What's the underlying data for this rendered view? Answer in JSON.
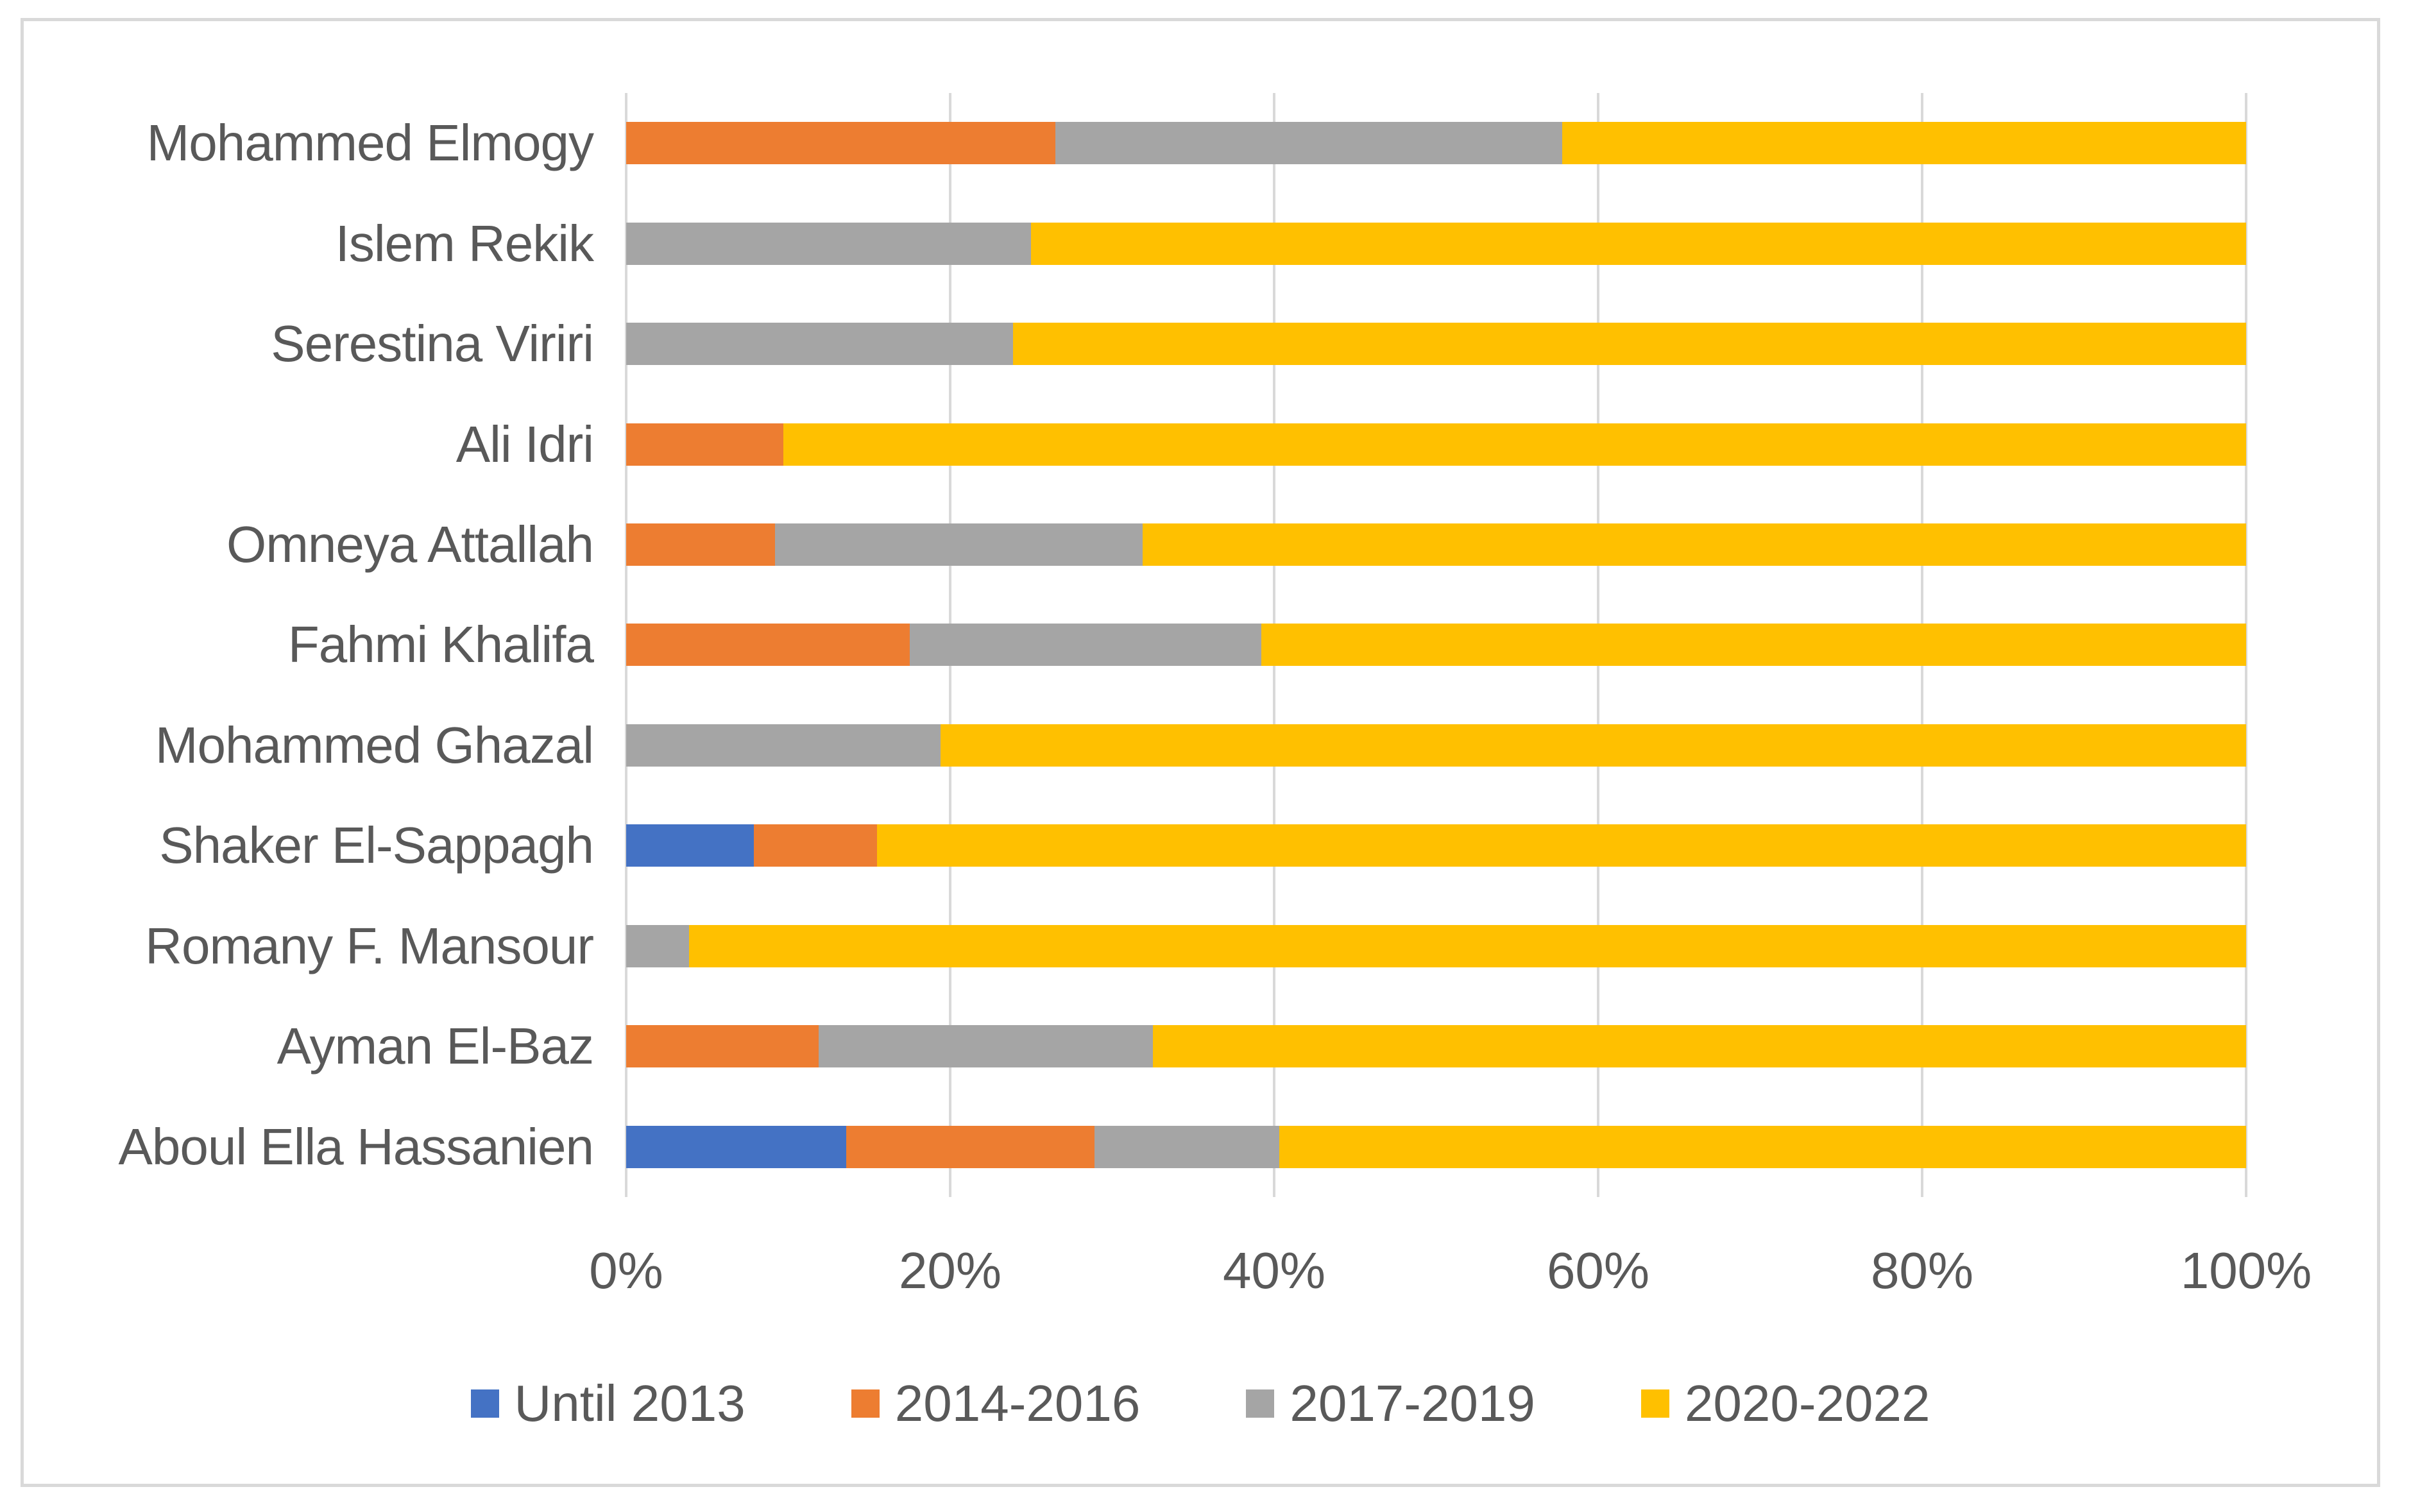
{
  "chart_data": {
    "type": "bar",
    "orientation": "horizontal",
    "stacked": true,
    "unit": "percent",
    "title": "",
    "categories": [
      "Mohammed Elmogy",
      "Islem Rekik",
      "Serestina Viriri",
      "Ali Idri",
      "Omneya Attallah",
      "Fahmi Khalifa",
      "Mohammed Ghazal",
      "Shaker El-Sappagh",
      "Romany F. Mansour",
      "Ayman El-Baz",
      "Aboul Ella Hassanien"
    ],
    "series": [
      {
        "name": "Until 2013",
        "color": "#4472C4",
        "values": [
          0,
          0,
          0,
          0,
          0,
          0,
          0,
          7.9,
          0,
          0,
          13.6
        ]
      },
      {
        "name": "2014-2016",
        "color": "#ED7D31",
        "values": [
          26.5,
          0,
          0,
          9.7,
          9.2,
          17.5,
          0,
          7.6,
          0,
          11.9,
          15.3
        ]
      },
      {
        "name": "2017-2019",
        "color": "#A5A5A5",
        "values": [
          31.3,
          25.0,
          23.9,
          0,
          22.7,
          21.7,
          19.4,
          0,
          3.9,
          20.6,
          11.4
        ]
      },
      {
        "name": "2020-2022",
        "color": "#FFC000",
        "values": [
          42.2,
          75.0,
          76.1,
          90.3,
          68.1,
          60.8,
          80.6,
          84.5,
          96.1,
          67.5,
          59.7
        ]
      }
    ],
    "x_axis": {
      "range": [
        0,
        100
      ],
      "tick_values": [
        0,
        20,
        40,
        60,
        80,
        100
      ],
      "tick_labels": [
        "0%",
        "20%",
        "40%",
        "60%",
        "80%",
        "100%"
      ]
    },
    "legend": {
      "position": "bottom",
      "items": [
        "Until 2013",
        "2014-2016",
        "2017-2019",
        "2020-2022"
      ]
    },
    "grid": "vertical"
  },
  "colors": {
    "grid": "#D9D9D9",
    "frame_border": "#D9D9D9",
    "text": "#595959",
    "background": "#FFFFFF"
  }
}
